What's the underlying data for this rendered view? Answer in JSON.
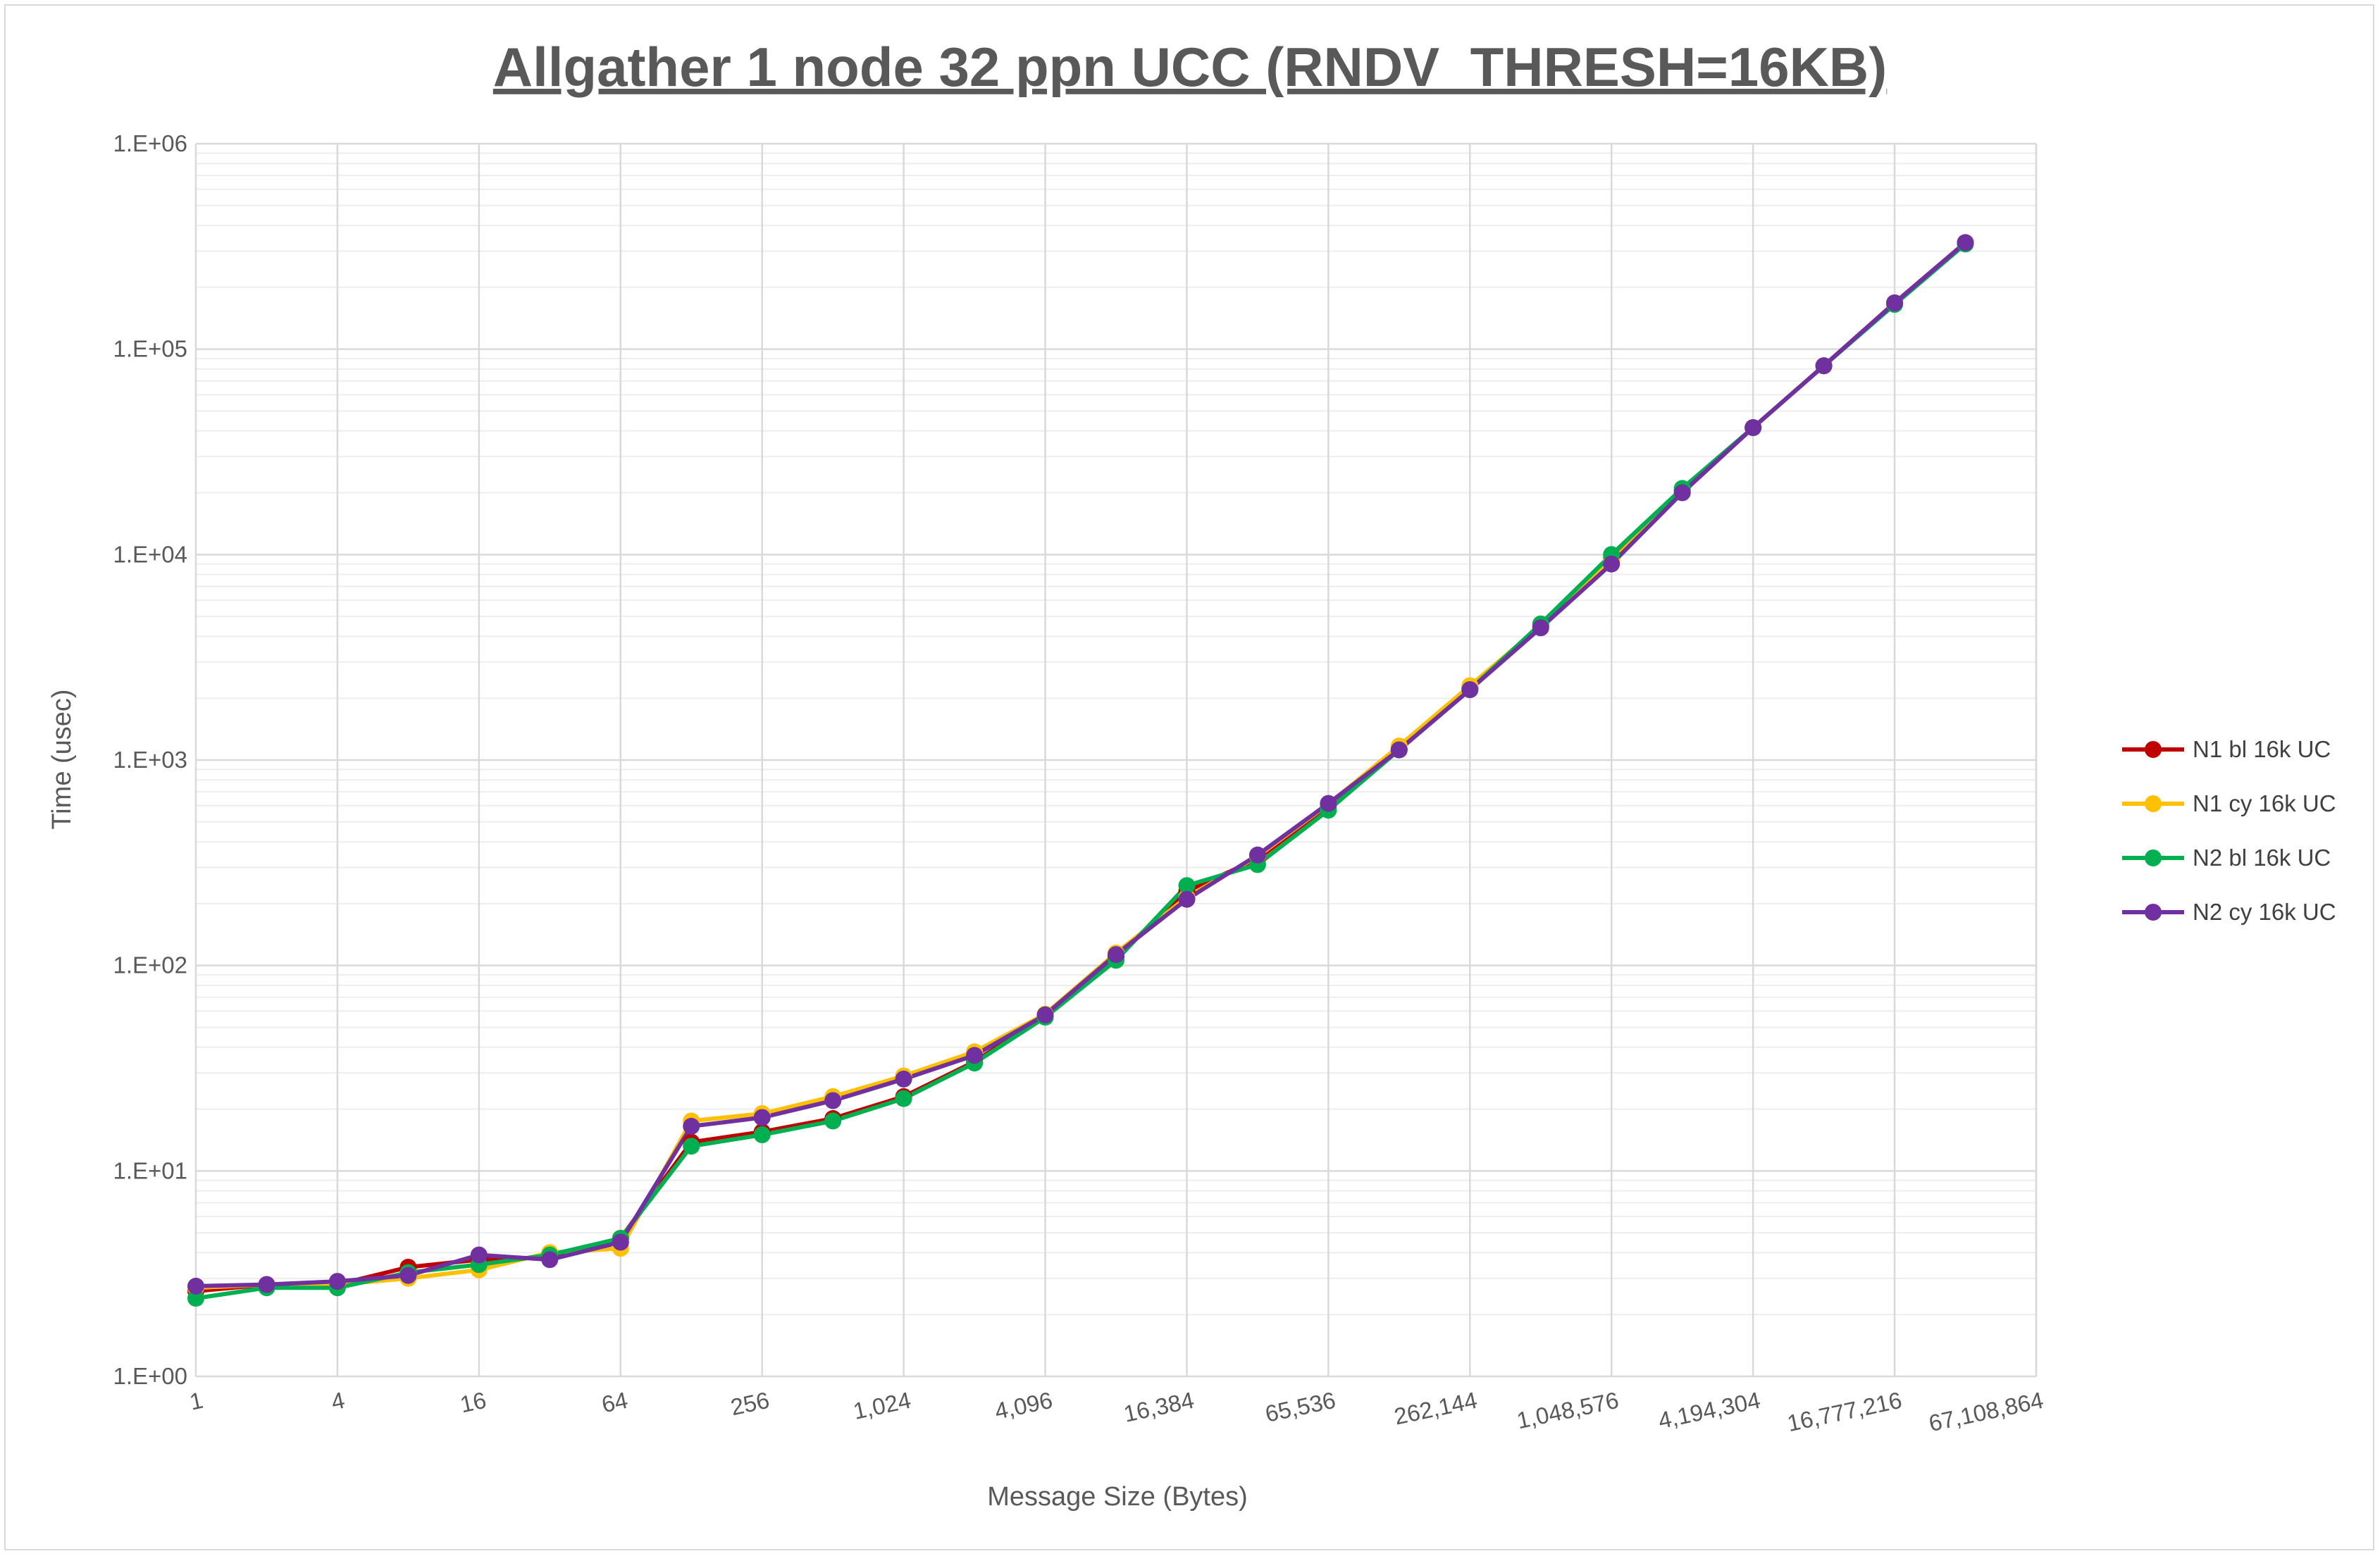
{
  "chart_data": {
    "type": "line",
    "title": "Allgather 1 node 32 ppn UCC (RNDV_THRESH=16KB)",
    "xlabel": "Message Size (Bytes)",
    "ylabel": "Time (usec)",
    "x_scale": "log2",
    "y_scale": "log10",
    "x_tick_labels": [
      "1",
      "4",
      "16",
      "64",
      "256",
      "1,024",
      "4,096",
      "16,384",
      "65,536",
      "262,144",
      "1,048,576",
      "4,194,304",
      "16,777,216",
      "67,108,864"
    ],
    "y_tick_labels": [
      "1.E+00",
      "1.E+01",
      "1.E+02",
      "1.E+03",
      "1.E+04",
      "1.E+05",
      "1.E+06"
    ],
    "ylim": [
      1,
      1000000
    ],
    "grid": true,
    "legend_position": "right",
    "x": [
      1,
      2,
      4,
      8,
      16,
      32,
      64,
      128,
      256,
      512,
      1024,
      2048,
      4096,
      8192,
      16384,
      32768,
      65536,
      131072,
      262144,
      524288,
      1048576,
      2097152,
      4194304,
      8388608,
      16777216,
      33554432
    ],
    "series": [
      {
        "name": "N1 bl 16k UC",
        "color": "#c00000",
        "values": [
          2.6,
          2.8,
          2.8,
          3.4,
          3.7,
          3.8,
          4.7,
          13.8,
          15.5,
          18,
          23,
          34,
          57,
          110,
          230,
          330,
          600,
          1130,
          2250,
          4500,
          9500,
          20500,
          41500,
          83000,
          168000,
          330000
        ]
      },
      {
        "name": "N1 cy 16k UC",
        "color": "#ffc000",
        "values": [
          2.7,
          2.8,
          2.8,
          3.0,
          3.3,
          4.0,
          4.2,
          17.5,
          19,
          23,
          29,
          38,
          58,
          115,
          215,
          340,
          610,
          1170,
          2300,
          4500,
          9300,
          20000,
          41500,
          83000,
          168000,
          330000
        ]
      },
      {
        "name": "N2 bl 16k UC",
        "color": "#00b050",
        "values": [
          2.4,
          2.7,
          2.7,
          3.2,
          3.5,
          3.9,
          4.7,
          13.2,
          15,
          17.5,
          22.5,
          33.5,
          56,
          106,
          245,
          310,
          570,
          1120,
          2200,
          4600,
          10000,
          21000,
          41500,
          83000,
          165000,
          325000
        ]
      },
      {
        "name": "N2 cy 16k UC",
        "color": "#7030a0",
        "values": [
          2.75,
          2.8,
          2.9,
          3.1,
          3.9,
          3.7,
          4.5,
          16.5,
          18.2,
          22,
          28,
          36.5,
          57.5,
          113,
          210,
          345,
          615,
          1120,
          2200,
          4400,
          9000,
          20000,
          41500,
          83000,
          168000,
          330000
        ]
      }
    ]
  }
}
